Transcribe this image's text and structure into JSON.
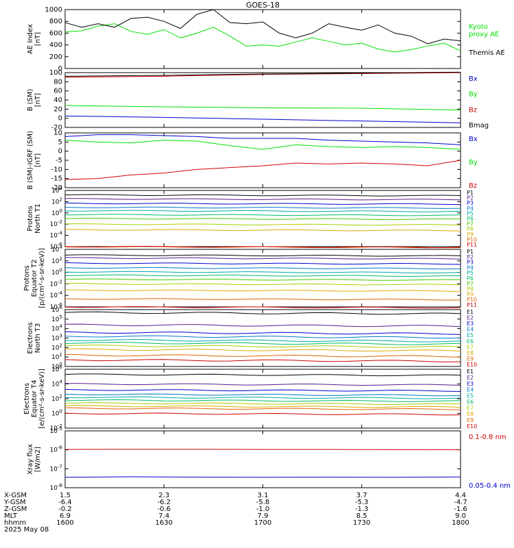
{
  "title": "GOES-18",
  "date_label": "2025 May 08",
  "colors": {
    "black": "#000000",
    "green": "#00e000",
    "red": "#cc0000",
    "blue": "#0000cc",
    "dark_red": "#b00000"
  },
  "chart_data": [
    {
      "type": "line",
      "id": "ae",
      "ylabel": "AE Index\n[nT]",
      "ylim": [
        0,
        1000
      ],
      "yticks": [
        0,
        200,
        400,
        600,
        800,
        1000
      ],
      "ytick_labels": [
        "0",
        "200",
        "400",
        "600",
        "800",
        "1000"
      ],
      "x": [
        0,
        5,
        10,
        15,
        20,
        25,
        30,
        35,
        40,
        45,
        50,
        55,
        60,
        65,
        70,
        75,
        80,
        85,
        90,
        95,
        100,
        105,
        110,
        115,
        120
      ],
      "series": [
        {
          "name": "Kyoto\nproxy AE",
          "color": "green",
          "values": [
            620,
            640,
            720,
            760,
            630,
            580,
            660,
            520,
            600,
            700,
            550,
            380,
            400,
            380,
            450,
            520,
            460,
            400,
            430,
            330,
            280,
            320,
            380,
            430,
            300
          ]
        },
        {
          "name": "Themis AE",
          "color": "black",
          "values": [
            780,
            700,
            760,
            700,
            850,
            870,
            800,
            680,
            920,
            1000,
            780,
            760,
            790,
            600,
            520,
            600,
            760,
            700,
            650,
            740,
            600,
            550,
            420,
            500,
            470
          ]
        }
      ]
    },
    {
      "type": "line",
      "id": "b",
      "ylabel": "B (SM)\n[nT]",
      "ylim": [
        -20,
        100
      ],
      "yticks": [
        -20,
        0,
        20,
        40,
        60,
        80,
        100
      ],
      "ytick_labels": [
        "-20",
        "0",
        "20",
        "40",
        "60",
        "80",
        "100"
      ],
      "x": [
        0,
        30,
        60,
        90,
        120
      ],
      "series": [
        {
          "name": "Bx",
          "color": "blue",
          "values": [
            5,
            2,
            -2,
            -6,
            -10
          ]
        },
        {
          "name": "By",
          "color": "green",
          "values": [
            28,
            25,
            23,
            22,
            18
          ]
        },
        {
          "name": "Bz",
          "color": "red",
          "values": [
            90,
            92,
            96,
            98,
            100
          ]
        },
        {
          "name": "Bmag",
          "color": "black",
          "values": [
            92,
            94,
            97,
            99,
            101
          ]
        }
      ]
    },
    {
      "type": "line",
      "id": "bdiff",
      "ylabel": "B (SM)-IGRF (SM)\n[nT]",
      "ylim": [
        -20,
        10
      ],
      "yticks": [
        -20,
        -15,
        -10,
        -5,
        0,
        5,
        10
      ],
      "ytick_labels": [
        "-20",
        "-15",
        "-10",
        "-5",
        "0",
        "5",
        "10"
      ],
      "x": [
        0,
        10,
        20,
        30,
        40,
        50,
        60,
        70,
        80,
        90,
        100,
        110,
        120
      ],
      "series": [
        {
          "name": "Bx",
          "color": "blue",
          "values": [
            8,
            9,
            9,
            8.5,
            8,
            7,
            7,
            7,
            6,
            5.5,
            5,
            4.5,
            3.5
          ]
        },
        {
          "name": "By",
          "color": "green",
          "values": [
            6,
            5,
            4.5,
            6,
            5.5,
            3,
            1,
            3.5,
            2.5,
            2,
            2.5,
            2,
            1
          ]
        },
        {
          "name": "Bz",
          "color": "red",
          "values": [
            -15.5,
            -15,
            -13,
            -12,
            -10,
            -9,
            -8,
            -6.5,
            -7,
            -6.5,
            -7,
            -8,
            -5
          ]
        }
      ]
    },
    {
      "type": "line",
      "id": "protons_t1",
      "scale": "log",
      "ylabel": "Protons\nNorth T1",
      "ylim_exp": [
        -6,
        4
      ],
      "ytick_exps": [
        -6,
        -4,
        -2,
        0,
        2,
        4
      ],
      "series_labels": [
        "P1",
        "P2",
        "P3",
        "P4",
        "P5",
        "P6",
        "P7",
        "P8",
        "P9",
        "P10",
        "P11"
      ],
      "series_colors": [
        "#000000",
        "#551a8b",
        "#0000cc",
        "#0077cc",
        "#00aaaa",
        "#00bb66",
        "#44cc00",
        "#aacc00",
        "#ddaa00",
        "#dd6600",
        "#cc0000"
      ],
      "series_levels": [
        3.2,
        2.5,
        1.7,
        1.0,
        0.4,
        -0.3,
        -1.0,
        -2.0,
        -3.0,
        -6.0,
        -6.0
      ]
    },
    {
      "type": "line",
      "id": "protons_t2",
      "scale": "log",
      "ylabel": "Protons\nEquator T2\n[p/(cm²-s-sr-keV)]",
      "ylim_exp": [
        -6,
        4
      ],
      "ytick_exps": [
        -6,
        -4,
        -2,
        0,
        2,
        4
      ],
      "series_labels": [
        "P1",
        "P2",
        "P3",
        "P4",
        "P5",
        "P6",
        "P7",
        "P8",
        "P9",
        "P10",
        "P11"
      ],
      "series_colors": [
        "#000000",
        "#551a8b",
        "#0000cc",
        "#0077cc",
        "#00aaaa",
        "#00bb66",
        "#44cc00",
        "#aacc00",
        "#ddaa00",
        "#dd6600",
        "#cc0000"
      ],
      "series_levels": [
        3.0,
        2.5,
        1.6,
        0.8,
        0.1,
        -0.5,
        -1.2,
        -2.0,
        -3.1,
        -4.6,
        -6.0
      ]
    },
    {
      "type": "line",
      "id": "electrons_t3",
      "scale": "log",
      "ylabel": "Electrons\nNorth T3",
      "ylim_exp": [
        0,
        6
      ],
      "ytick_exps": [
        0,
        1,
        2,
        3,
        4,
        5,
        6
      ],
      "series_labels": [
        "E1",
        "E2",
        "E3",
        "E4",
        "E5",
        "E6",
        "E7",
        "E8",
        "E9",
        "E10"
      ],
      "series_colors": [
        "#000000",
        "#551a8b",
        "#0000cc",
        "#0077cc",
        "#00aaaa",
        "#00bb66",
        "#aacc00",
        "#ddaa00",
        "#dd6600",
        "#cc0000"
      ],
      "series_levels": [
        5.7,
        4.4,
        3.6,
        3.2,
        2.8,
        2.5,
        2.2,
        1.8,
        1.2,
        0.7
      ]
    },
    {
      "type": "line",
      "id": "electrons_t4",
      "scale": "log",
      "ylabel": "Electrons\nEquator T4\n[e/(cm²-s-sr-keV)]",
      "ylim_exp": [
        -2,
        6
      ],
      "ytick_exps": [
        -2,
        0,
        2,
        4,
        6
      ],
      "series_labels": [
        "E1",
        "E2",
        "E3",
        "E4",
        "E5",
        "E6",
        "E7",
        "E8",
        "E9",
        "E10"
      ],
      "series_colors": [
        "#000000",
        "#551a8b",
        "#0000cc",
        "#0077cc",
        "#00aaaa",
        "#00bb66",
        "#aacc00",
        "#ddaa00",
        "#dd6600",
        "#cc0000"
      ],
      "series_levels": [
        5.3,
        4.0,
        3.2,
        2.6,
        2.2,
        1.8,
        1.4,
        1.0,
        0.7,
        0.0
      ]
    },
    {
      "type": "line",
      "id": "xray",
      "scale": "log",
      "ylabel": "Xray flux\n[W/m2]",
      "ylim_exp": [
        -8,
        -5
      ],
      "ytick_exps": [
        -8,
        -7,
        -6,
        -5
      ],
      "series": [
        {
          "name": "0.1-0.8 nm",
          "color": "red",
          "exp_values": [
            -5.98,
            -5.97,
            -5.97,
            -5.98,
            -5.98,
            -5.99,
            -6.0
          ]
        },
        {
          "name": "0.05-0.4 nm",
          "color": "blue",
          "exp_values": [
            -7.45,
            -7.42,
            -7.44,
            -7.45,
            -7.44,
            -7.45,
            -7.43
          ]
        }
      ]
    }
  ],
  "x_axis": {
    "rows": [
      {
        "label": "X-GSM",
        "values": [
          "1.5",
          "2.3",
          "3.1",
          "3.7",
          "4.4"
        ]
      },
      {
        "label": "Y-GSM",
        "values": [
          "-6.4",
          "-6.2",
          "-5.8",
          "-5.3",
          "-4.7"
        ]
      },
      {
        "label": "Z-GSM",
        "values": [
          "-0.2",
          "-0.6",
          "-1.0",
          "-1.3",
          "-1.6"
        ]
      },
      {
        "label": "MLT",
        "values": [
          "6.9",
          "7.4",
          "7.9",
          "8.5",
          "9.0"
        ]
      },
      {
        "label": "hhmm",
        "values": [
          "1600",
          "1630",
          "1700",
          "1730",
          "1800"
        ]
      }
    ],
    "tick_minutes": [
      0,
      30,
      60,
      90,
      120
    ]
  }
}
